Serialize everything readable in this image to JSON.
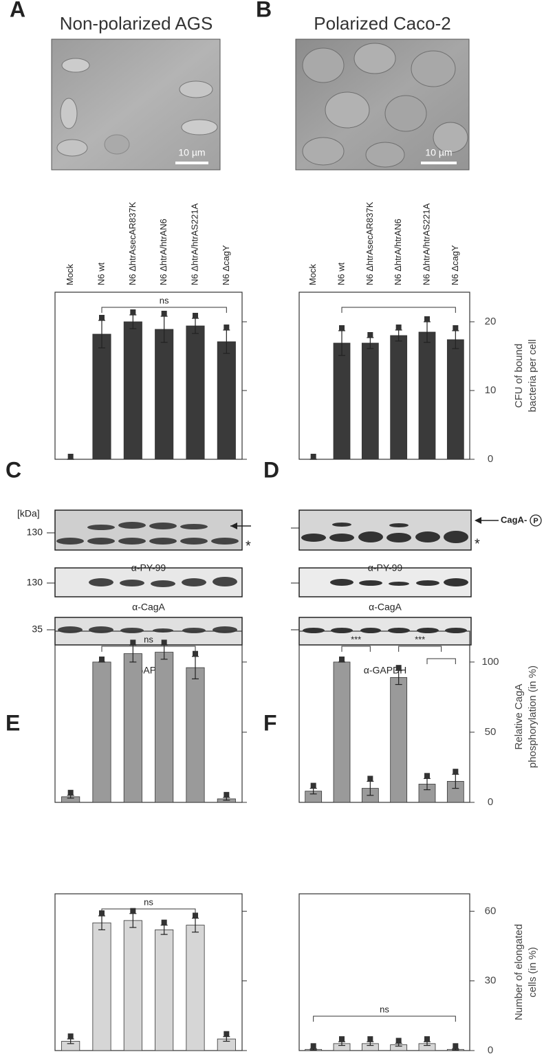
{
  "figure": {
    "panels": [
      "A",
      "B",
      "C",
      "D",
      "E",
      "F"
    ],
    "scale_bar": "10 µm",
    "blots": {
      "kda_unit": "[kDa]",
      "markers": [
        "130",
        "130",
        "35"
      ],
      "antibodies": [
        "α-PY-99",
        "α-CagA",
        "α-GAPDH"
      ],
      "phospho_label": "CagA-",
      "phospho_symbol": "P",
      "asterisk": "*"
    }
  },
  "chart_data": [
    {
      "type": "bar",
      "title": "Non-polarized AGS",
      "categories": [
        "Mock",
        "N6 wt",
        "N6 ΔhtrAsecAR837K",
        "N6 ΔhtrA/htrAN6",
        "N6 ΔhtrA/htrAS221A",
        "N6 ΔcagY"
      ],
      "values": [
        0,
        18.2,
        20,
        18.9,
        19.4,
        17.1
      ],
      "errors": [
        0,
        2,
        1,
        1.9,
        1.1,
        1.7
      ],
      "color": "#3a3a3a",
      "ylim": [
        0,
        24.3
      ],
      "yticks": [
        0,
        10,
        20
      ],
      "tick_labels": false,
      "annotations": [
        "ns"
      ]
    },
    {
      "type": "bar",
      "title": "Polarized Caco-2",
      "categories": [
        "Mock",
        "N6 wt",
        "N6 ΔhtrAsecAR837K",
        "N6 ΔhtrA/htrAN6",
        "N6 ΔhtrA/htrAS221A",
        "N6 ΔcagY"
      ],
      "values": [
        0,
        16.9,
        16.9,
        18,
        18.5,
        17.4
      ],
      "errors": [
        0,
        1.8,
        0.8,
        0.8,
        1.5,
        1.3
      ],
      "color": "#3a3a3a",
      "ylim": [
        0,
        24.3
      ],
      "yticks": [
        0,
        10,
        20
      ],
      "tick_labels": true,
      "ylabel": [
        "CFU of bound",
        "bacteria per cell"
      ]
    },
    {
      "type": "bar",
      "values": [
        4,
        100,
        106,
        107,
        96,
        2.5
      ],
      "errors": [
        1,
        0,
        6,
        5,
        8,
        1
      ],
      "color": "#9a9a9a",
      "ylim": [
        0,
        122
      ],
      "yticks": [
        0,
        50,
        100
      ],
      "tick_labels": false,
      "annotations": [
        "ns"
      ]
    },
    {
      "type": "bar",
      "values": [
        8,
        100,
        10,
        89,
        13,
        15
      ],
      "errors": [
        2,
        0,
        5,
        5,
        4,
        5
      ],
      "color": "#9a9a9a",
      "ylim": [
        0,
        122
      ],
      "yticks": [
        0,
        50,
        100
      ],
      "tick_labels": true,
      "ylabel": [
        "Relative CagA",
        "phosphorylation (in %)"
      ],
      "annotations": [
        "***",
        "***"
      ]
    },
    {
      "type": "bar",
      "values": [
        4,
        55,
        56,
        52,
        54,
        5
      ],
      "errors": [
        1,
        3,
        3,
        2,
        3,
        1
      ],
      "color": "#d6d6d6",
      "ylim": [
        0,
        67.5
      ],
      "yticks": [
        0,
        30,
        60
      ],
      "tick_labels": false,
      "annotations": [
        "ns"
      ]
    },
    {
      "type": "bar",
      "values": [
        0.5,
        3,
        3,
        2.5,
        3,
        0.5
      ],
      "errors": [
        0.3,
        0.8,
        0.8,
        0.6,
        0.8,
        0.3
      ],
      "color": "#d6d6d6",
      "ylim": [
        0,
        67.5
      ],
      "yticks": [
        0,
        30,
        60
      ],
      "tick_labels": true,
      "ylabel": [
        "Number of elongated",
        "cells (in %)"
      ],
      "annotations": [
        "ns"
      ]
    }
  ]
}
